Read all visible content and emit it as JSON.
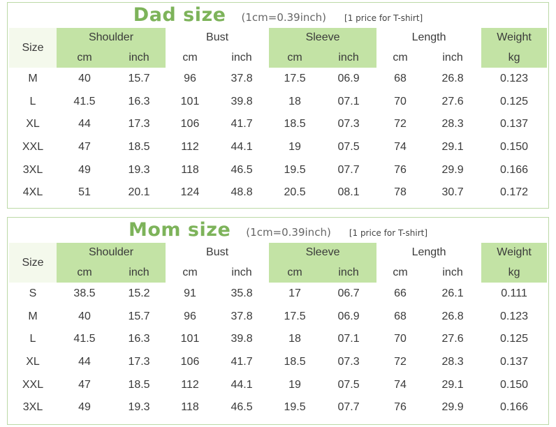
{
  "headers": {
    "size": "Size",
    "shoulder": "Shoulder",
    "bust": "Bust",
    "sleeve": "Sleeve",
    "length": "Length",
    "weight": "Weight",
    "cm": "cm",
    "inch": "inch",
    "kg": "kg"
  },
  "dad": {
    "title": "Dad size",
    "conversion": "(1cm=0.39inch)",
    "note": "[1 price for T-shirt]",
    "rows": [
      [
        "M",
        "40",
        "15.7",
        "96",
        "37.8",
        "17.5",
        "06.9",
        "68",
        "26.8",
        "0.123"
      ],
      [
        "L",
        "41.5",
        "16.3",
        "101",
        "39.8",
        "18",
        "07.1",
        "70",
        "27.6",
        "0.125"
      ],
      [
        "XL",
        "44",
        "17.3",
        "106",
        "41.7",
        "18.5",
        "07.3",
        "72",
        "28.3",
        "0.137"
      ],
      [
        "XXL",
        "47",
        "18.5",
        "112",
        "44.1",
        "19",
        "07.5",
        "74",
        "29.1",
        "0.150"
      ],
      [
        "3XL",
        "49",
        "19.3",
        "118",
        "46.5",
        "19.5",
        "07.7",
        "76",
        "29.9",
        "0.166"
      ],
      [
        "4XL",
        "51",
        "20.1",
        "124",
        "48.8",
        "20.5",
        "08.1",
        "78",
        "30.7",
        "0.172"
      ]
    ]
  },
  "mom": {
    "title": "Mom size",
    "conversion": "(1cm=0.39inch)",
    "note": "[1 price for T-shirt]",
    "rows": [
      [
        "S",
        "38.5",
        "15.2",
        "91",
        "35.8",
        "17",
        "06.7",
        "66",
        "26.1",
        "0.111"
      ],
      [
        "M",
        "40",
        "15.7",
        "96",
        "37.8",
        "17.5",
        "06.9",
        "68",
        "26.8",
        "0.123"
      ],
      [
        "L",
        "41.5",
        "16.3",
        "101",
        "39.8",
        "18",
        "07.1",
        "70",
        "27.6",
        "0.125"
      ],
      [
        "XL",
        "44",
        "17.3",
        "106",
        "41.7",
        "18.5",
        "07.3",
        "72",
        "28.3",
        "0.137"
      ],
      [
        "XXL",
        "47",
        "18.5",
        "112",
        "44.1",
        "19",
        "07.5",
        "74",
        "29.1",
        "0.150"
      ],
      [
        "3XL",
        "49",
        "19.3",
        "118",
        "46.5",
        "19.5",
        "07.7",
        "76",
        "29.9",
        "0.166"
      ]
    ]
  }
}
